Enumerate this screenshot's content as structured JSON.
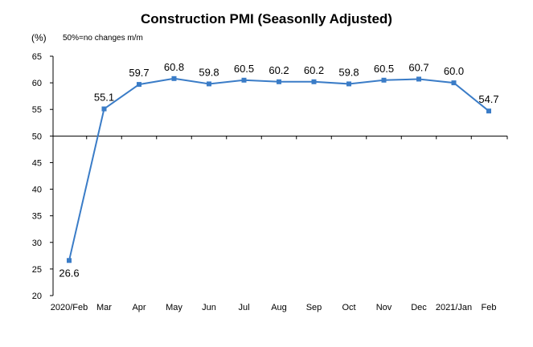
{
  "chart_data": {
    "type": "line",
    "title": "Construction PMI (Seasonlly Adjusted)",
    "ylabel": "(%)",
    "note": "50%=no changes  m/m",
    "categories": [
      "2020/Feb",
      "Mar",
      "Apr",
      "May",
      "Jun",
      "Jul",
      "Aug",
      "Sep",
      "Oct",
      "Nov",
      "Dec",
      "2021/Jan",
      "Feb"
    ],
    "values": [
      26.6,
      55.1,
      59.7,
      60.8,
      59.8,
      60.5,
      60.2,
      60.2,
      59.8,
      60.5,
      60.7,
      60.0,
      54.7
    ],
    "value_labels": [
      "26.6",
      "55.1",
      "59.7",
      "60.8",
      "59.8",
      "60.5",
      "60.2",
      "60.2",
      "59.8",
      "60.5",
      "60.7",
      "60.0",
      "54.7"
    ],
    "ylim": [
      20,
      65
    ],
    "yticks": [
      20,
      25,
      30,
      35,
      40,
      45,
      50,
      55,
      60,
      65
    ],
    "ytick_labels": [
      "20",
      "25",
      "30",
      "35",
      "40",
      "45",
      "50",
      "55",
      "60",
      "65"
    ],
    "baseline": 50,
    "grid": false,
    "colors": {
      "line": "#3a7cc7",
      "axis": "#000000"
    }
  }
}
